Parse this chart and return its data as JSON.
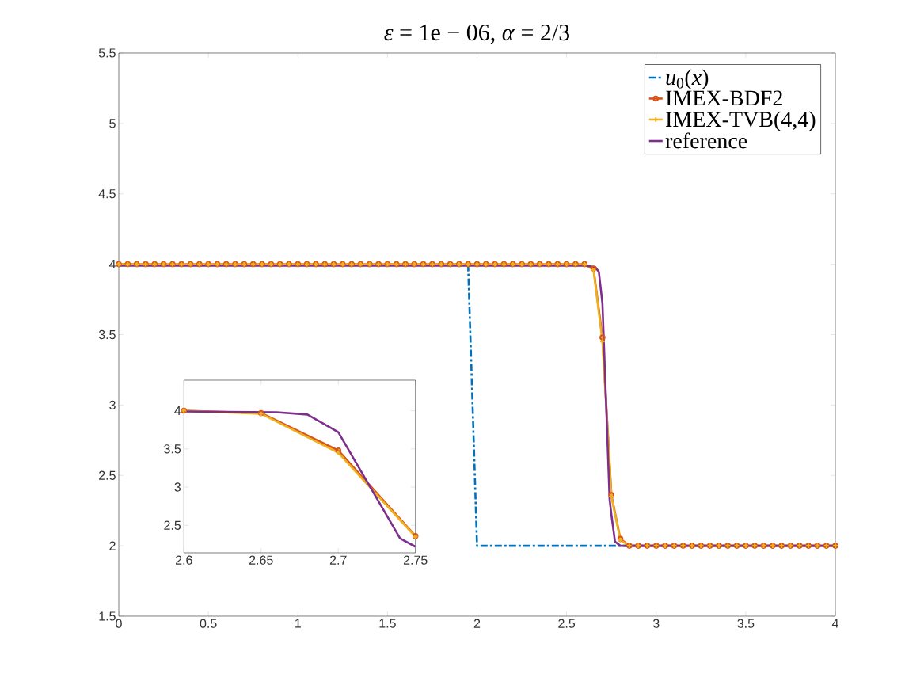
{
  "chart_data": [
    {
      "type": "line",
      "title": "*ε* = 1e − 06, *α* = 2/3",
      "xlim": [
        0,
        4
      ],
      "ylim": [
        1.5,
        5.5
      ],
      "xticks": [
        0,
        0.5,
        1,
        1.5,
        2,
        2.5,
        3,
        3.5,
        4
      ],
      "yticks": [
        1.5,
        2,
        2.5,
        3,
        3.5,
        4,
        4.5,
        5,
        5.5
      ],
      "legend": "top right",
      "grid": false,
      "series": [
        {
          "name": "*u*$_{0}$(*x*)",
          "color": "#0072bd",
          "line_style": "dashdot",
          "marker": "none",
          "x": [
            1.95,
            2,
            4
          ],
          "values": [
            4,
            2,
            2
          ]
        },
        {
          "name": "IMEX-BDF2",
          "color": "#d95319",
          "line_style": "solid",
          "marker": "circle",
          "x": [
            0,
            0.05,
            0.1,
            0.15,
            0.2,
            0.25,
            0.3,
            0.35,
            0.4,
            0.45,
            0.5,
            0.55,
            0.6,
            0.65,
            0.7,
            0.75,
            0.8,
            0.85,
            0.9,
            0.95,
            1,
            1.05,
            1.1,
            1.15,
            1.2,
            1.25,
            1.3,
            1.35,
            1.4,
            1.45,
            1.5,
            1.55,
            1.6,
            1.65,
            1.7,
            1.75,
            1.8,
            1.85,
            1.9,
            1.95,
            2,
            2.05,
            2.1,
            2.15,
            2.2,
            2.25,
            2.3,
            2.35,
            2.4,
            2.45,
            2.5,
            2.55,
            2.6,
            2.65,
            2.7,
            2.75,
            2.8,
            2.85,
            2.9,
            2.95,
            3,
            3.05,
            3.1,
            3.15,
            3.2,
            3.25,
            3.3,
            3.35,
            3.4,
            3.45,
            3.5,
            3.55,
            3.6,
            3.65,
            3.7,
            3.75,
            3.8,
            3.85,
            3.9,
            3.95,
            4
          ],
          "values": [
            4,
            4,
            4,
            4,
            4,
            4,
            4,
            4,
            4,
            4,
            4,
            4,
            4,
            4,
            4,
            4,
            4,
            4,
            4,
            4,
            4,
            4,
            4,
            4,
            4,
            4,
            4,
            4,
            4,
            4,
            4,
            4,
            4,
            4,
            4,
            4,
            4,
            4,
            4,
            4,
            4,
            4,
            4,
            4,
            4,
            4,
            4,
            4,
            4,
            4,
            4,
            4,
            4,
            3.97,
            3.48,
            2.36,
            2.05,
            2,
            2,
            2,
            2,
            2,
            2,
            2,
            2,
            2,
            2,
            2,
            2,
            2,
            2,
            2,
            2,
            2,
            2,
            2,
            2,
            2,
            2,
            2,
            2
          ]
        },
        {
          "name": "IMEX-TVB(4,4)",
          "color": "#edb120",
          "line_style": "solid",
          "marker": "cross",
          "x": [
            0,
            0.05,
            0.1,
            0.15,
            0.2,
            0.25,
            0.3,
            0.35,
            0.4,
            0.45,
            0.5,
            0.55,
            0.6,
            0.65,
            0.7,
            0.75,
            0.8,
            0.85,
            0.9,
            0.95,
            1,
            1.05,
            1.1,
            1.15,
            1.2,
            1.25,
            1.3,
            1.35,
            1.4,
            1.45,
            1.5,
            1.55,
            1.6,
            1.65,
            1.7,
            1.75,
            1.8,
            1.85,
            1.9,
            1.95,
            2,
            2.05,
            2.1,
            2.15,
            2.2,
            2.25,
            2.3,
            2.35,
            2.4,
            2.45,
            2.5,
            2.55,
            2.6,
            2.65,
            2.7,
            2.75,
            2.8,
            2.85,
            2.9,
            2.95,
            3,
            3.05,
            3.1,
            3.15,
            3.2,
            3.25,
            3.3,
            3.35,
            3.4,
            3.45,
            3.5,
            3.55,
            3.6,
            3.65,
            3.7,
            3.75,
            3.8,
            3.85,
            3.9,
            3.95,
            4
          ],
          "values": [
            4,
            4,
            4,
            4,
            4,
            4,
            4,
            4,
            4,
            4,
            4,
            4,
            4,
            4,
            4,
            4,
            4,
            4,
            4,
            4,
            4,
            4,
            4,
            4,
            4,
            4,
            4,
            4,
            4,
            4,
            4,
            4,
            4,
            4,
            4,
            4,
            4,
            4,
            4,
            4,
            4,
            4,
            4,
            4,
            4,
            4,
            4,
            4,
            4,
            4,
            4,
            4,
            4,
            3.96,
            3.45,
            2.35,
            2.04,
            2,
            2,
            2,
            2,
            2,
            2,
            2,
            2,
            2,
            2,
            2,
            2,
            2,
            2,
            2,
            2,
            2,
            2,
            2,
            2,
            2,
            2,
            2,
            2
          ]
        },
        {
          "name": "reference",
          "color": "#7e2f8e",
          "line_style": "solid",
          "marker": "none",
          "x": [
            0,
            2.6,
            2.66,
            2.68,
            2.7,
            2.74,
            2.75,
            2.77,
            2.8,
            4
          ],
          "values": [
            3.99,
            3.99,
            3.98,
            3.945,
            3.72,
            2.33,
            2.22,
            2.03,
            2,
            2
          ]
        }
      ]
    },
    {
      "type": "line",
      "xlim": [
        2.6,
        2.75
      ],
      "ylim": [
        2.14,
        4.4
      ],
      "xticks": [
        2.6,
        2.65,
        2.7,
        2.75
      ],
      "yticks": [
        2.5,
        3,
        3.5,
        4
      ],
      "grid": false,
      "series": [
        {
          "color": "#d95319",
          "line_style": "solid",
          "marker": "circle",
          "x": [
            2.6,
            2.65,
            2.7,
            2.75
          ],
          "values": [
            4,
            3.97,
            3.48,
            2.36
          ]
        },
        {
          "color": "#edb120",
          "line_style": "solid",
          "marker": "cross",
          "x": [
            2.6,
            2.65,
            2.7,
            2.75
          ],
          "values": [
            4,
            3.96,
            3.45,
            2.35
          ]
        },
        {
          "color": "#7e2f8e",
          "line_style": "solid",
          "marker": "none",
          "x": [
            2.6,
            2.66,
            2.68,
            2.7,
            2.74,
            2.75
          ],
          "values": [
            3.99,
            3.98,
            3.95,
            3.72,
            2.33,
            2.22
          ]
        }
      ]
    }
  ]
}
